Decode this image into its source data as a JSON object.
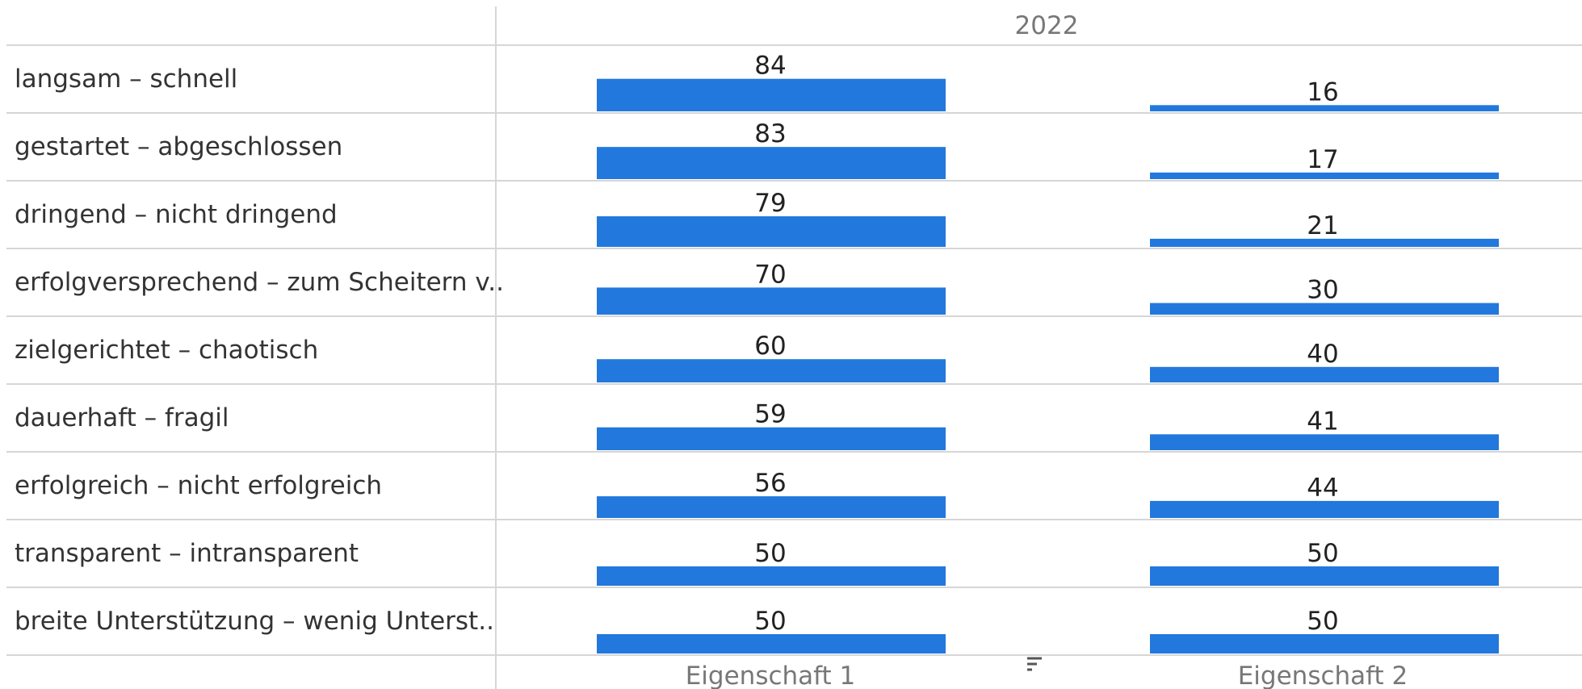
{
  "chart_data": {
    "type": "bar",
    "header": "2022",
    "columns": [
      "Eigenschaft 1",
      "Eigenschaft 2"
    ],
    "categories": [
      "langsam – schnell",
      "gestartet – abgeschlossen",
      "dringend – nicht dringend",
      "erfolgversprechend – zum Scheitern v..",
      "zielgerichtet – chaotisch",
      "dauerhaft – fragil",
      "erfolgreich – nicht erfolgreich",
      "transparent – intransparent",
      "breite Unterstützung – wenig Unterst.."
    ],
    "series": [
      {
        "values": [
          84,
          83,
          79,
          70,
          60,
          59,
          56,
          50,
          50
        ]
      },
      {
        "values": [
          16,
          17,
          21,
          30,
          40,
          41,
          44,
          50,
          50
        ]
      }
    ],
    "ylim": [
      0,
      100
    ],
    "bar_color": "#2278dd",
    "grid": false
  },
  "sort_icon": "sort-descending-icon"
}
